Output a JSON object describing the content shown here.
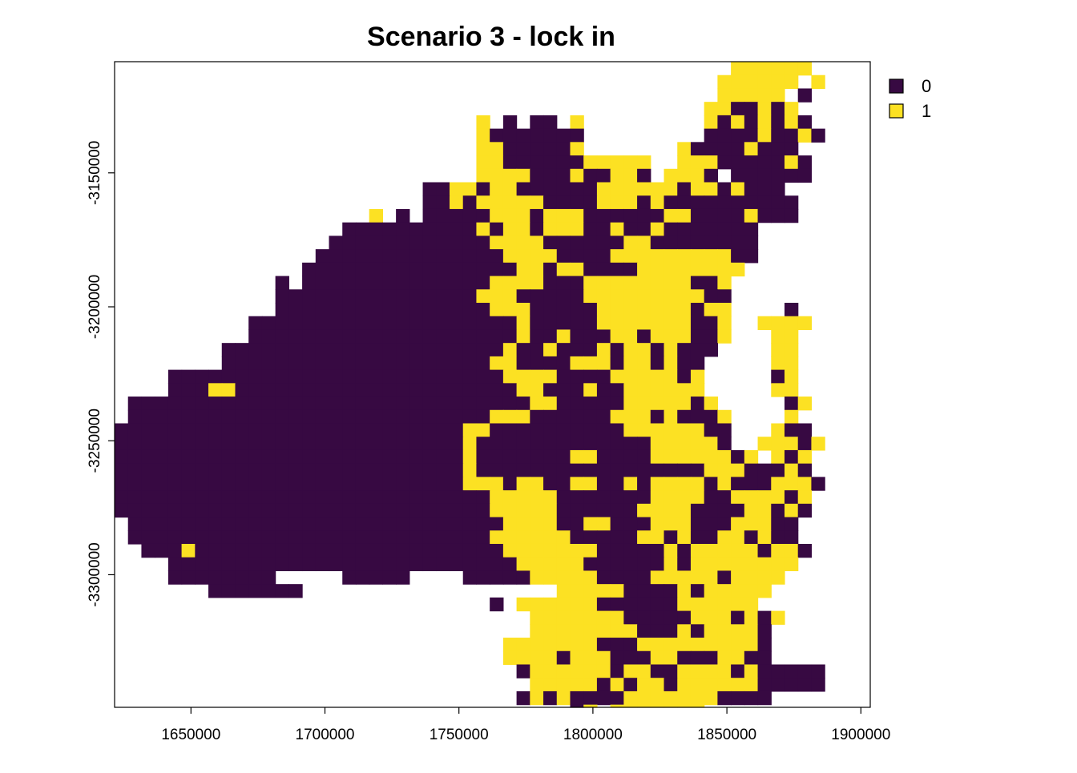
{
  "title": "Scenario 3 - lock in",
  "palette": {
    "0": "#370942",
    "1": "#fce123"
  },
  "legend": [
    {
      "label": "0",
      "value": 0,
      "color": "#370942"
    },
    {
      "label": "1",
      "value": 1,
      "color": "#fce123"
    }
  ],
  "extent": {
    "xmin": 1621500,
    "xmax": 1903500,
    "ymin": -3349500,
    "ymax": -3108500
  },
  "cell_size": 5000,
  "x_ticks": [
    1650000,
    1700000,
    1750000,
    1800000,
    1850000,
    1900000
  ],
  "y_ticks": [
    -3150000,
    -3200000,
    -3250000,
    -3300000
  ],
  "x_tick_labels": [
    "1650000",
    "1700000",
    "1750000",
    "1800000",
    "1850000",
    "1900000"
  ],
  "y_tick_labels": [
    "-3150000",
    "-3200000",
    "-3250000",
    "-3300000"
  ],
  "raster": {
    "origin_x": 1621500,
    "origin_y": -3108500,
    "codes": {
      ".": null,
      "0": 0,
      "1": 1
    },
    "rows": [
      "..............................................1111115.....",
      ".............................................111111.1....",
      ".............................................11111.0.......",
      "............................................1100101.......",
      "...........................1.0.00.1.........10101010......",
      "...........................10000000.........000010010.....",
      "...........................11000001.......100001000.......",
      "...........................1100000011111..1110000010......",
      "...........................1111000100110.1110.000000......",
      ".......................001101100000011111101101000........",
      ".......................0010111110000111010000000000.......",
      "...................1.0.0000011101110000001100001000.......",
      ".................0000000000101101110010010000000.........",
      "................00000000000011110000001100000000.........",
      "...............000000000000001111000011111111100.........",
      "..............000000000000000011011000011111111..........",
      "............0.00000000000000111100011111111001...........",
      "............0000000000000001110000011111111100...........",
      "............0000000000000000111000001111111011....0......",
      "..........000000000000000000001000001111111001..1111.....",
      "..........000000000000000000001001000110111001...11......",
      "........0000000000000000000001001000101101000....11......",
      "........000000000000000000001100001110110100.....11......",
      "....0000000000000000000000000111100001111101.....01......",
      "....0001100000000000000000000011000100111111.....11......",
      ".00000000000000000000000000000011000001111101.....01.....",
      ".000000000000000000000000000111000000111010001....1......",
      "0000000000000000000000000011000000000011111100...100.....",
      "0000000000000000000000000010000000000000111110..11101....",
      "000000000000000000000000001000000011000011111101.101.....",
      "0000000000000000000000000010000000000000000011100010.....",
      "00000000000000000000000000111011001100101111010001110....",
      "0000000000000000000000000000111110000000111100111101.....",
      "0000000000000000000000000000111110000001111000011010.....",
      ".00000000000000000000000000001111001100011100011100.......",
      ".00000000000000000000000000011111100000110100110100.......",
      "..00010000000000000000000000011111110000010111110110......",
      "....00000000000000000000000000111110000001011111111.......",
      "....00000000.....00000....000001111100001111101111........",
      ".......0000000...................1111100001011111.........",
      "............................0.111111000000111111.........",
      "...............................1111111000001110101.........",
      "...............................111111110001011110.........",
      ".............................11111110001111111110..........",
      ".............................11110111000110001100..........",
      "..............................01111110110011110100000.....",
      "...............................1111101011011111100000.....",
      "..............................0101000011111110000..........",
      "..................................01.1111111..............."
    ]
  }
}
